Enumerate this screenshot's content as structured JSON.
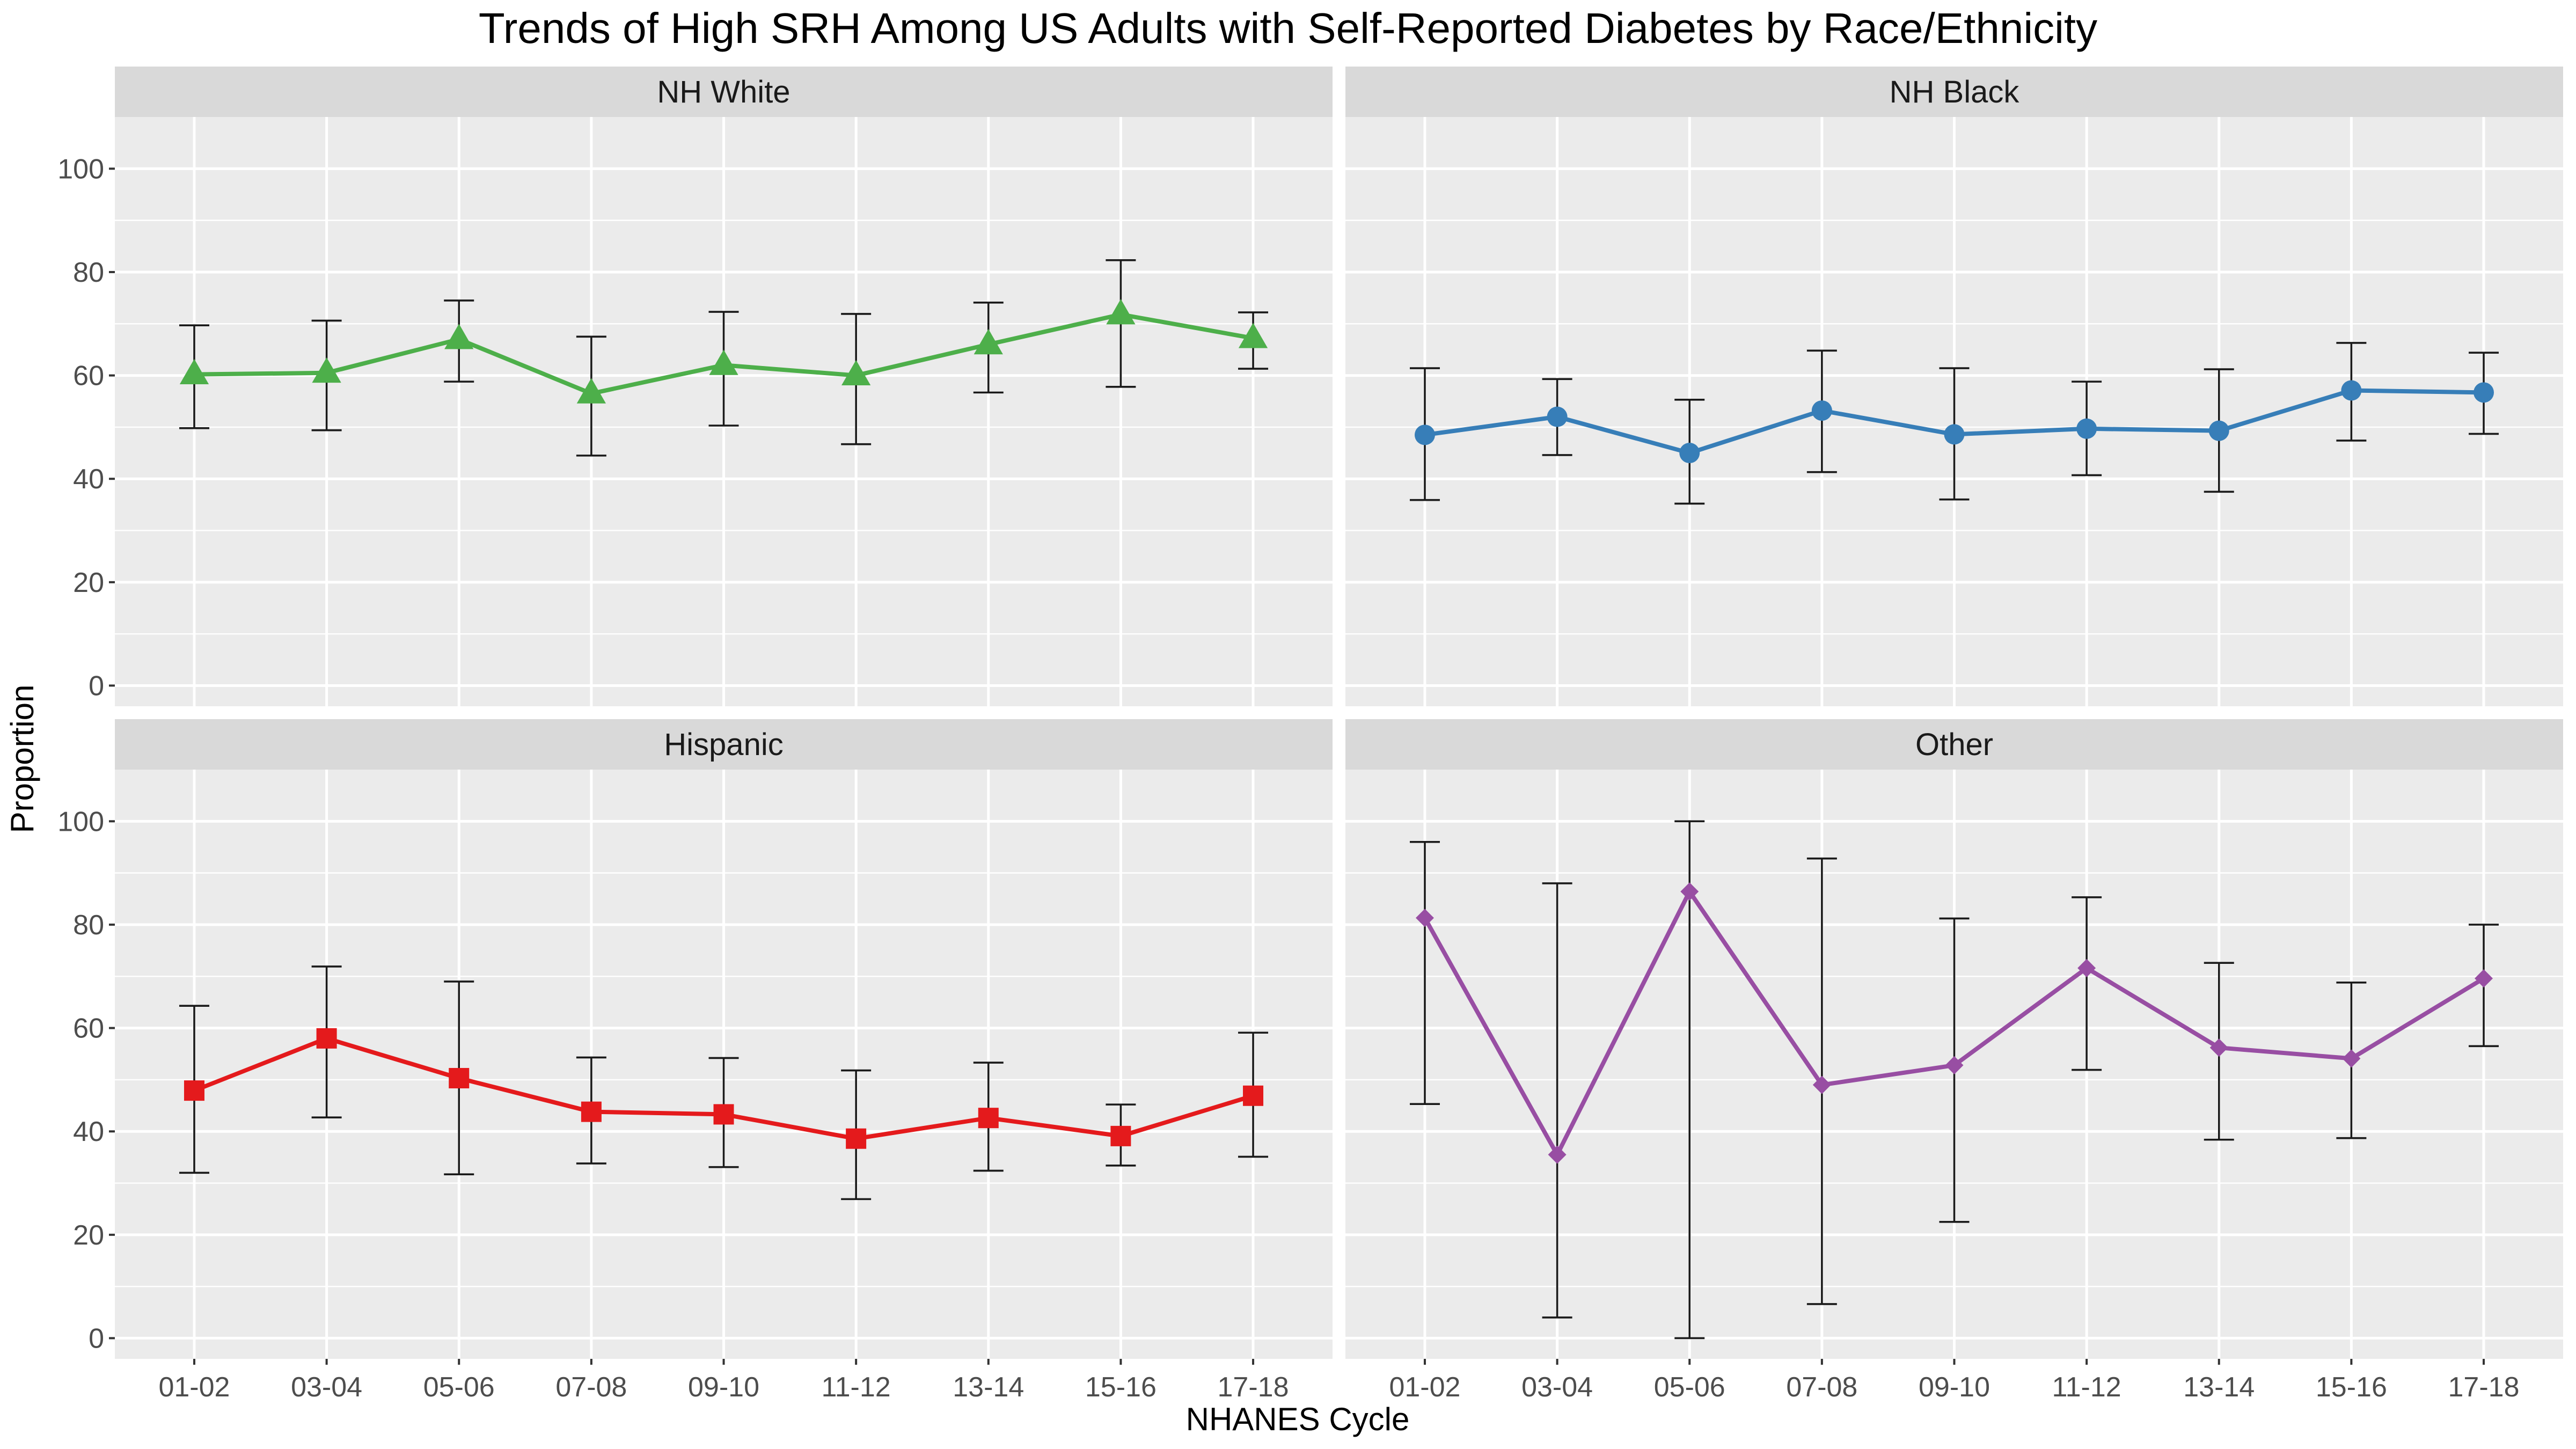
{
  "chart_data": {
    "type": "line",
    "title": "Trends of High SRH Among US Adults with Self-Reported Diabetes by Race/Ethnicity",
    "xlabel": "NHANES Cycle",
    "ylabel": "Proportion",
    "categories": [
      "01-02",
      "03-04",
      "05-06",
      "07-08",
      "09-10",
      "11-12",
      "13-14",
      "15-16",
      "17-18"
    ],
    "ylim": [
      -4,
      110
    ],
    "yticks": [
      0,
      20,
      40,
      60,
      80,
      100
    ],
    "grid": true,
    "legend": "none",
    "facets": [
      {
        "name": "NH White",
        "color": "#4daf4a",
        "marker": "triangle",
        "values": [
          60.2,
          60.5,
          67.0,
          56.5,
          62.0,
          60.0,
          66.0,
          71.8,
          67.2
        ],
        "lower": [
          49.8,
          49.4,
          58.8,
          44.5,
          50.3,
          46.7,
          56.7,
          57.8,
          61.3
        ],
        "upper": [
          69.7,
          70.6,
          74.5,
          67.5,
          72.3,
          71.9,
          74.1,
          82.3,
          72.2
        ]
      },
      {
        "name": "NH Black",
        "color": "#377eb8",
        "marker": "circle",
        "values": [
          48.5,
          52.0,
          45.0,
          53.2,
          48.6,
          49.7,
          49.3,
          57.1,
          56.7
        ],
        "lower": [
          35.9,
          44.6,
          35.2,
          41.3,
          36.0,
          40.7,
          37.5,
          47.4,
          48.7
        ],
        "upper": [
          61.4,
          59.3,
          55.3,
          64.8,
          61.4,
          58.8,
          61.2,
          66.3,
          64.4
        ]
      },
      {
        "name": "Hispanic",
        "color": "#e41a1c",
        "marker": "square",
        "values": [
          47.9,
          58.0,
          50.3,
          43.8,
          43.3,
          38.6,
          42.6,
          39.1,
          46.9
        ],
        "lower": [
          32.0,
          42.7,
          31.7,
          33.8,
          33.1,
          26.9,
          32.4,
          33.4,
          35.1
        ],
        "upper": [
          64.3,
          71.9,
          69.0,
          54.3,
          54.2,
          51.8,
          53.3,
          45.2,
          59.1
        ]
      },
      {
        "name": "Other",
        "color": "#984ea3",
        "marker": "diamond",
        "values": [
          81.3,
          35.5,
          86.4,
          49.0,
          52.8,
          71.6,
          56.2,
          54.1,
          69.6
        ],
        "lower": [
          45.3,
          4.0,
          0.0,
          6.6,
          22.5,
          51.9,
          38.4,
          38.7,
          56.5
        ],
        "upper": [
          96.0,
          88.0,
          100.0,
          92.8,
          81.2,
          85.3,
          72.6,
          68.8,
          80.0
        ]
      }
    ]
  }
}
